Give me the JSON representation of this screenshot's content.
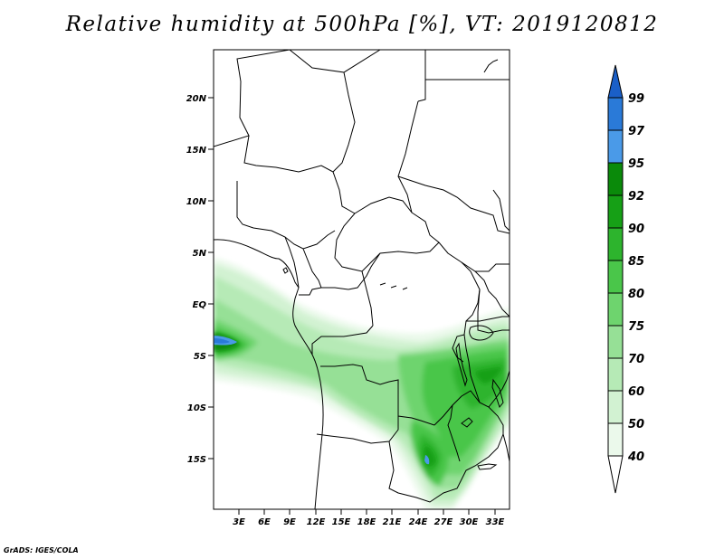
{
  "title": "Relative humidity at 500hPa [%], VT: 2019120812",
  "credit": "GrADS: IGES/COLA",
  "map": {
    "lat_labels": [
      "20N",
      "15N",
      "10N",
      "5N",
      "EQ",
      "5S",
      "10S",
      "15S"
    ],
    "lon_labels": [
      "3E",
      "6E",
      "9E",
      "12E",
      "15E",
      "18E",
      "21E",
      "24E",
      "27E",
      "30E",
      "33E"
    ]
  },
  "colorbar": {
    "levels": [
      "99",
      "97",
      "95",
      "92",
      "90",
      "85",
      "80",
      "75",
      "70",
      "60",
      "50",
      "40"
    ],
    "colors": {
      "above_99": "#1a5fc8",
      "97_99": "#2a7ad8",
      "95_97": "#4a9ae8",
      "92_95": "#0a8a0a",
      "90_92": "#16a016",
      "85_90": "#2db42d",
      "80_85": "#4ac64a",
      "75_80": "#6ed46e",
      "70_75": "#96e096",
      "60_70": "#b6eab6",
      "50_60": "#d2f2d2",
      "40_50": "#ebf9eb",
      "below_40": "#ffffff"
    }
  }
}
